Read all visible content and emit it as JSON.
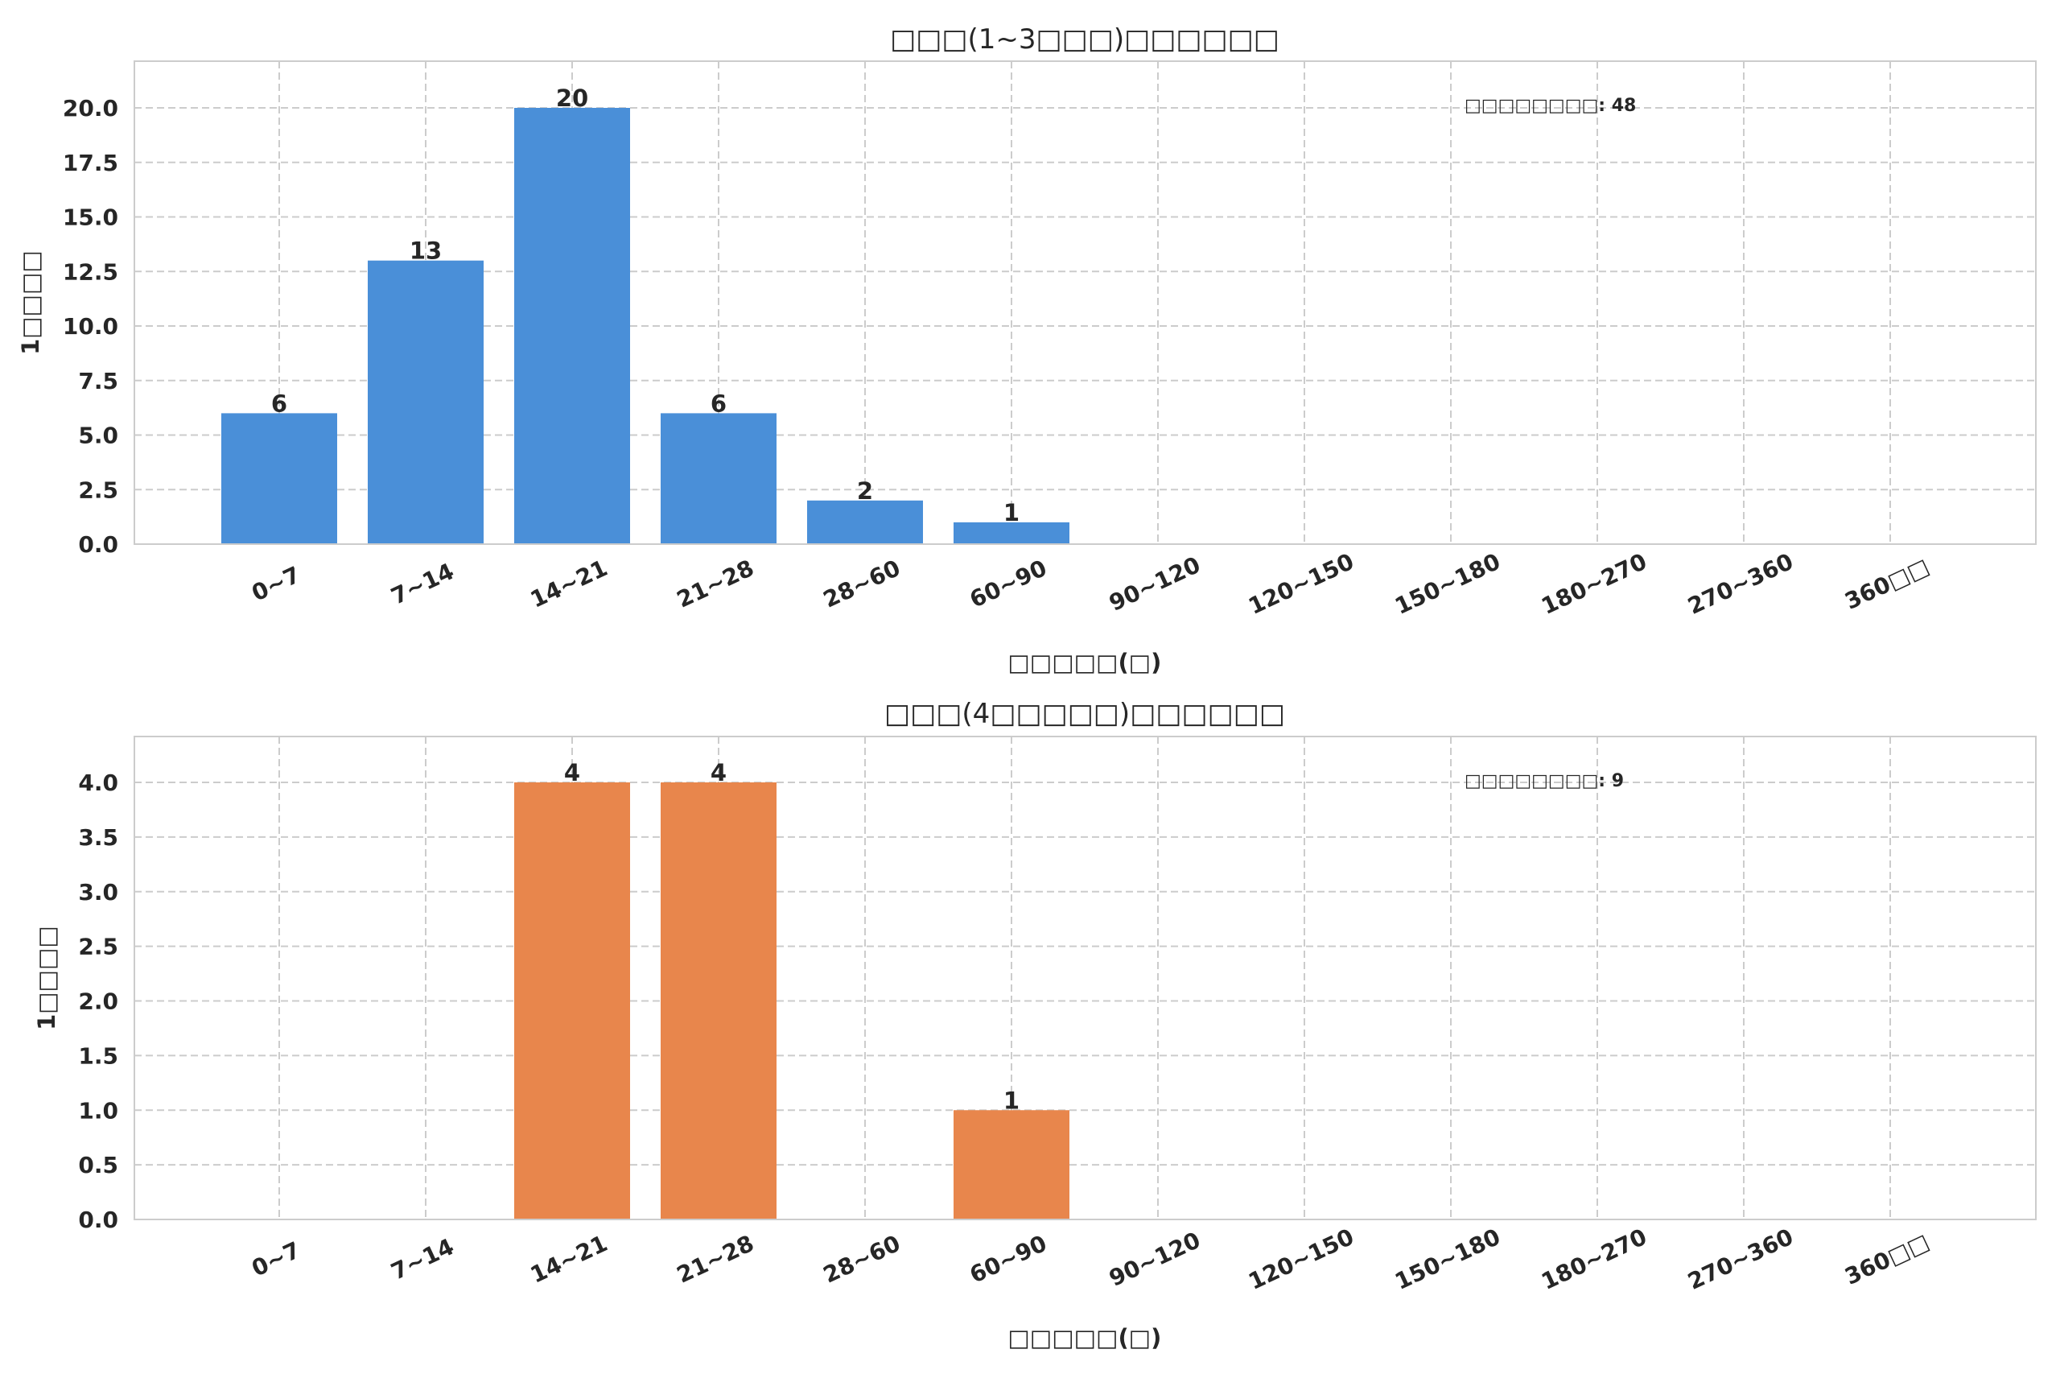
{
  "chart_data": [
    {
      "type": "bar",
      "title": "□□□(1~3□□□)□□□□□□",
      "xlabel": "□□□□□(□)",
      "ylabel": "1□□□□",
      "categories": [
        "0~7",
        "7~14",
        "14~21",
        "21~28",
        "28~60",
        "60~90",
        "90~120",
        "120~150",
        "150~180",
        "180~270",
        "270~360",
        "360□□"
      ],
      "values": [
        6,
        13,
        20,
        6,
        2,
        1,
        0,
        0,
        0,
        0,
        0,
        0
      ],
      "data_labels": [
        "6",
        "13",
        "20",
        "6",
        "2",
        "1",
        "",
        "",
        "",
        "",
        "",
        ""
      ],
      "ylim": [
        0,
        22
      ],
      "yticks": [
        "0.0",
        "2.5",
        "5.0",
        "7.5",
        "10.0",
        "12.5",
        "15.0",
        "17.5",
        "20.0"
      ],
      "annotation": "□□□□□□□□: 48",
      "color": "#4a8fd8",
      "grid": true
    },
    {
      "type": "bar",
      "title": "□□□(4□□□□□)□□□□□□",
      "xlabel": "□□□□□(□)",
      "ylabel": "1□□□□",
      "categories": [
        "0~7",
        "7~14",
        "14~21",
        "21~28",
        "28~60",
        "60~90",
        "90~120",
        "120~150",
        "150~180",
        "180~270",
        "270~360",
        "360□□"
      ],
      "values": [
        0,
        0,
        4,
        4,
        0,
        1,
        0,
        0,
        0,
        0,
        0,
        0
      ],
      "data_labels": [
        "",
        "",
        "4",
        "4",
        "",
        "1",
        "",
        "",
        "",
        "",
        "",
        ""
      ],
      "ylim": [
        0,
        4.4
      ],
      "yticks": [
        "0.0",
        "0.5",
        "1.0",
        "1.5",
        "2.0",
        "2.5",
        "3.0",
        "3.5",
        "4.0"
      ],
      "annotation": "□□□□□□□□: 9",
      "color": "#e8864c",
      "grid": true
    }
  ]
}
